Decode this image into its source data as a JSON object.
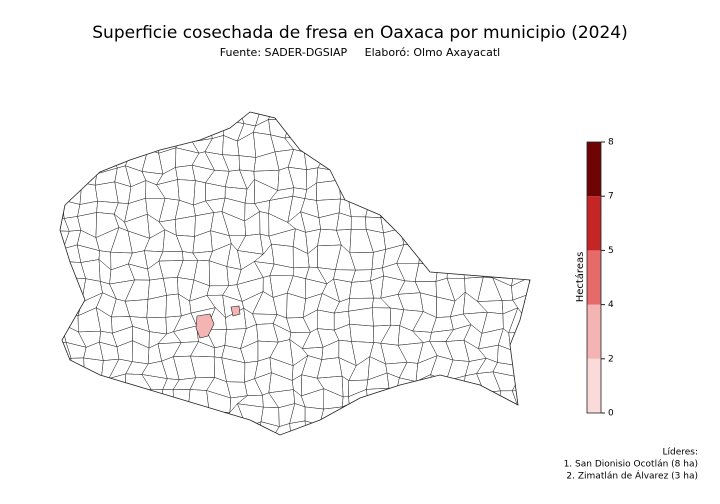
{
  "title": "Superficie cosechada de fresa en Oaxaca por municipio (2024)",
  "subtitle": "Fuente: SADER-DGSIAP     Elaboró: Olmo Axayacatl",
  "colorbar": {
    "label": "Hectáreas",
    "boundaries": [
      0,
      2,
      4,
      5,
      7,
      8
    ],
    "colors": [
      "#fbdada",
      "#f5b4b4",
      "#e66a6a",
      "#c62525",
      "#6e0404"
    ]
  },
  "leaders": {
    "title": "Líderes:",
    "items": [
      "1. San Dionisio Ocotlán (8 ha)",
      "2. Zimatlán de Álvarez (3 ha)"
    ]
  }
}
